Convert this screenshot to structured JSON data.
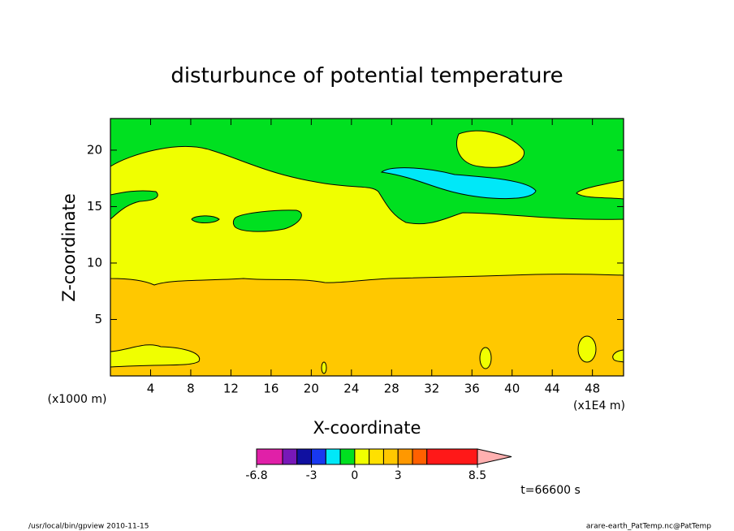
{
  "chart_data": {
    "type": "contour",
    "title": "disturbunce of potential temperature",
    "x_label": "X-coordinate",
    "y_label": "Z-coordinate",
    "x_unit_left": "(x1000 m)",
    "x_unit_right": "(x1E4 m)",
    "xlim": [
      0,
      51.1
    ],
    "ylim": [
      0,
      22.8
    ],
    "xticks": [
      4,
      8,
      12,
      16,
      20,
      24,
      28,
      32,
      36,
      40,
      44,
      48
    ],
    "yticks": [
      5,
      10,
      15,
      20
    ],
    "colorbar": {
      "levels": [
        -6.8,
        -5,
        -4,
        -3,
        -2,
        -1,
        0,
        1,
        2,
        3,
        4,
        5,
        8.5
      ],
      "colors": [
        "#e020a8",
        "#7818b8",
        "#1010a0",
        "#1838f0",
        "#00e8f8",
        "#00e020",
        "#f0ff00",
        "#ffe000",
        "#ffc800",
        "#ff9800",
        "#ff6000",
        "#ff1818"
      ],
      "extend_color": "#ffb0b0",
      "ticks": [
        -6.8,
        -3,
        0,
        3,
        8.5
      ]
    },
    "time_label": "t=66600 s",
    "footer_left": "/usr/local/bin/gpview  2010-11-15",
    "footer_right": "arare-earth_PatTemp.nc@PatTemp"
  }
}
